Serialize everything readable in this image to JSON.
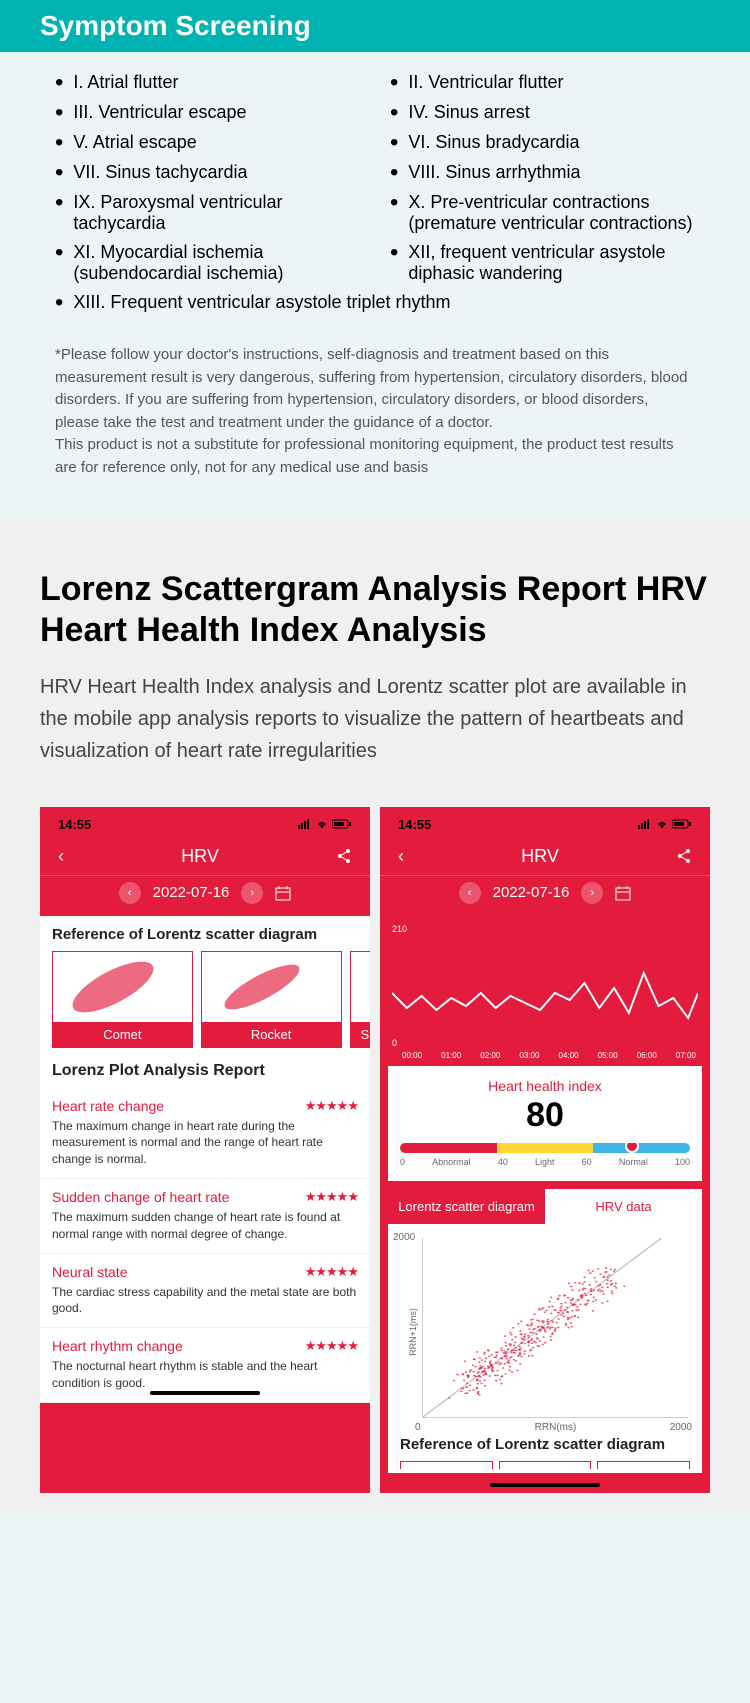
{
  "section1_title": "Symptom Screening",
  "symptoms": [
    "I. Atrial flutter",
    "II. Ventricular flutter",
    "III. Ventricular escape",
    "IV. Sinus arrest",
    "V. Atrial escape",
    "VI. Sinus bradycardia",
    "VII. Sinus tachycardia",
    "VIII. Sinus arrhythmia",
    "IX. Paroxysmal ventricular tachycardia",
    "X. Pre-ventricular contractions (premature ventricular contractions)",
    "XI. Myocardial ischemia (subendocardial ischemia)",
    "XII, frequent ventricular asystole diphasic wandering",
    "XIII. Frequent ventricular asystole triplet rhythm"
  ],
  "disclaimer1": "*Please follow your doctor's instructions, self-diagnosis and treatment based on this measurement result is very dangerous, suffering from hypertension, circulatory disorders, blood disorders. If you are suffering from hypertension, circulatory disorders, or blood disorders, please take the test and treatment under the guidance of a doctor.",
  "disclaimer2": "This product is not a substitute for professional monitoring equipment, the product test results are for reference only, not for any medical use and basis",
  "section2_title": "Lorenz Scattergram Analysis Report HRV Heart Health Index Analysis",
  "section2_desc": "HRV Heart Health Index analysis and Lorentz scatter plot are available in the mobile app analysis reports to visualize the pattern of heartbeats and visualization of heart rate irregularities",
  "phone": {
    "time": "14:55",
    "nav_title": "HRV",
    "date": "2022-07-16"
  },
  "phone1": {
    "ref_title": "Reference of Lorentz scatter diagram",
    "scatter_labels": [
      "Comet",
      "Rocket",
      "S"
    ],
    "report_title": "Lorenz Plot Analysis Report",
    "items": [
      {
        "title": "Heart rate change",
        "stars": "★★★★★",
        "desc": "The maximum change in heart rate during the measurement is normal and the range of heart rate change is normal."
      },
      {
        "title": "Sudden change of heart rate",
        "stars": "★★★★★",
        "desc": "The maximum sudden change of heart rate is found at normal range with normal degree of change."
      },
      {
        "title": "Neural state",
        "stars": "★★★★★",
        "desc": "The cardiac stress capability and the metal state are both good."
      },
      {
        "title": "Heart rhythm change",
        "stars": "★★★★★",
        "desc": "The nocturnal heart rhythm is stable and the heart condition is good."
      }
    ]
  },
  "phone2": {
    "chart_ymax": "210",
    "chart_zero": "0",
    "chart_xlabels": [
      "00:00",
      "01:00",
      "02:00",
      "03:00",
      "04:00",
      "05:00",
      "06:00",
      "07:00"
    ],
    "line_points": "0,55 15,70 30,58 45,72 60,60 75,68 90,55 105,70 120,58 135,65 150,72 165,55 180,62 195,45 210,70 225,50 240,75 255,35 270,68 285,60 300,80 310,55",
    "hhi_label": "Heart health index",
    "hhi_value": "80",
    "hhi_segments": [
      {
        "color": "#e31b3c",
        "label": "Abnormal",
        "start": "0"
      },
      {
        "color": "#ffd633",
        "label": "Light",
        "start": "40"
      },
      {
        "color": "#3db5e6",
        "label": "Normal",
        "start": "60",
        "end": "100"
      }
    ],
    "marker_pct": 80,
    "tabs": [
      "Lorentz scatter diagram",
      "HRV data"
    ],
    "plot_ymax": "2000",
    "plot_ylabel": "RRN+1(ms)",
    "plot_origin": "0",
    "plot_xlabel": "RRN(ms)",
    "plot_xmax": "2000",
    "ref_title2": "Reference of Lorentz scatter diagram"
  },
  "colors": {
    "teal": "#00b3b3",
    "red": "#e31b3c",
    "bg1": "#edf4f5",
    "bg2": "#f0f0f0"
  }
}
